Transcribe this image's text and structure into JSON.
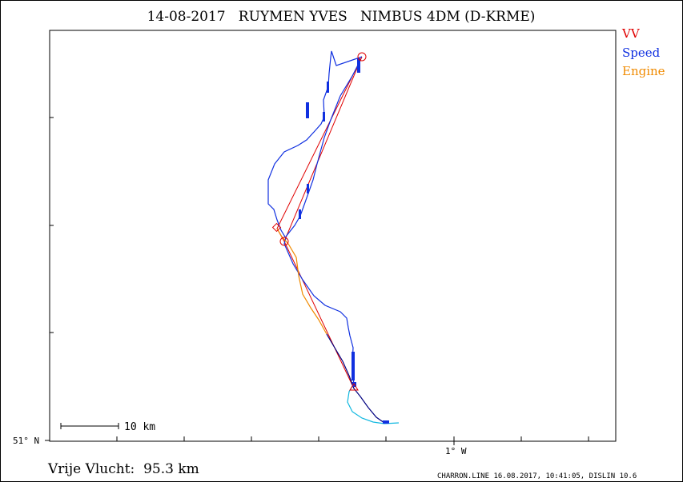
{
  "header": {
    "title": "14-08-2017   RUYMEN YVES   NIMBUS 4DM (D-KRME)"
  },
  "legend": [
    {
      "label": "VV",
      "color": "#e00000"
    },
    {
      "label": "Speed",
      "color": "#1030e0"
    },
    {
      "label": "Engine",
      "color": "#f08a00"
    }
  ],
  "axes": {
    "lat_label": "51° N",
    "lon_label": "1° W"
  },
  "scale_bar": {
    "label": "10 km"
  },
  "footer": {
    "distance_text": "Vrije Vlucht:  95.3 km",
    "credits": "CHARRON.LINE 16.08.2017, 10:41:05, DISLIN 10.6"
  },
  "colors": {
    "task_line": "#e00000",
    "track": "#1030e0",
    "engine": "#f08a00",
    "end_segment": "#10b8e0",
    "start_trail": "#000080"
  }
}
